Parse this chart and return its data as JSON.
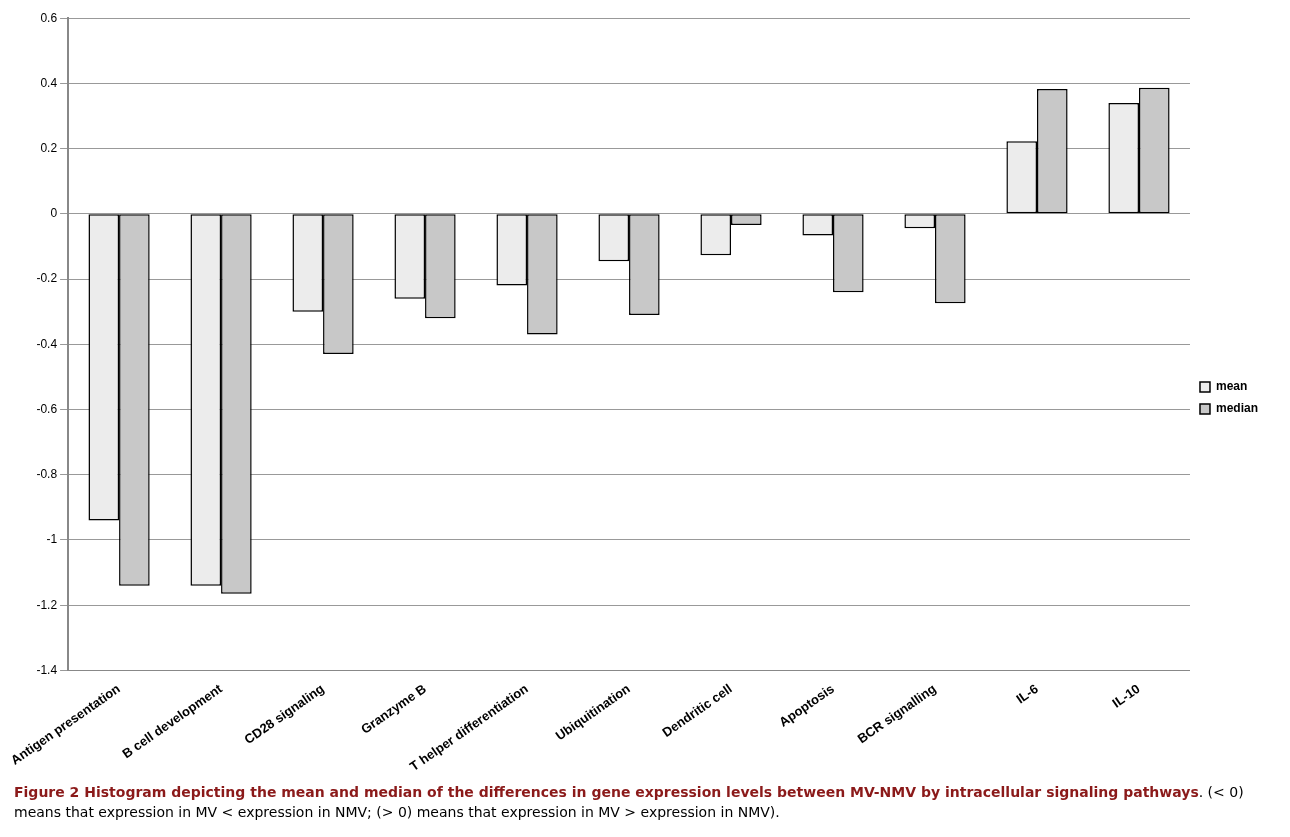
{
  "chart_data": {
    "type": "bar",
    "title": "Figure 2 Histogram depicting the mean and median of the differences in gene expression levels between MV-NMV by intracellular signaling pathways",
    "annotations": [
      ". (< 0) means that expression in MV < expression in NMV; (> 0) means that expression in MV > expression in NMV)."
    ],
    "categories": [
      "Antigen presentation",
      "B cell development",
      "CD28 signaling",
      "Granzyme B",
      "T helper differentiation",
      "Ubiquitination",
      "Dendritic cell",
      "Apoptosis",
      "BCR signalling",
      "IL-6",
      "IL-10"
    ],
    "series": [
      {
        "name": "mean",
        "color": "#ececec",
        "values": [
          -0.94,
          -1.14,
          -0.3,
          -0.26,
          -0.22,
          -0.145,
          -0.127,
          -0.066,
          -0.044,
          0.223,
          0.34
        ]
      },
      {
        "name": "median",
        "color": "#c8c8c8",
        "values": [
          -1.14,
          -1.165,
          -0.43,
          -0.32,
          -0.37,
          -0.31,
          -0.034,
          -0.24,
          -0.274,
          0.383,
          0.387
        ]
      }
    ],
    "ylim": [
      -1.4,
      0.6
    ],
    "yticks": [
      -1.4,
      -1.2,
      -1,
      -0.8,
      -0.6,
      -0.4,
      -0.2,
      0,
      0.2,
      0.4,
      0.6
    ],
    "grid": "y",
    "legend": "right"
  }
}
